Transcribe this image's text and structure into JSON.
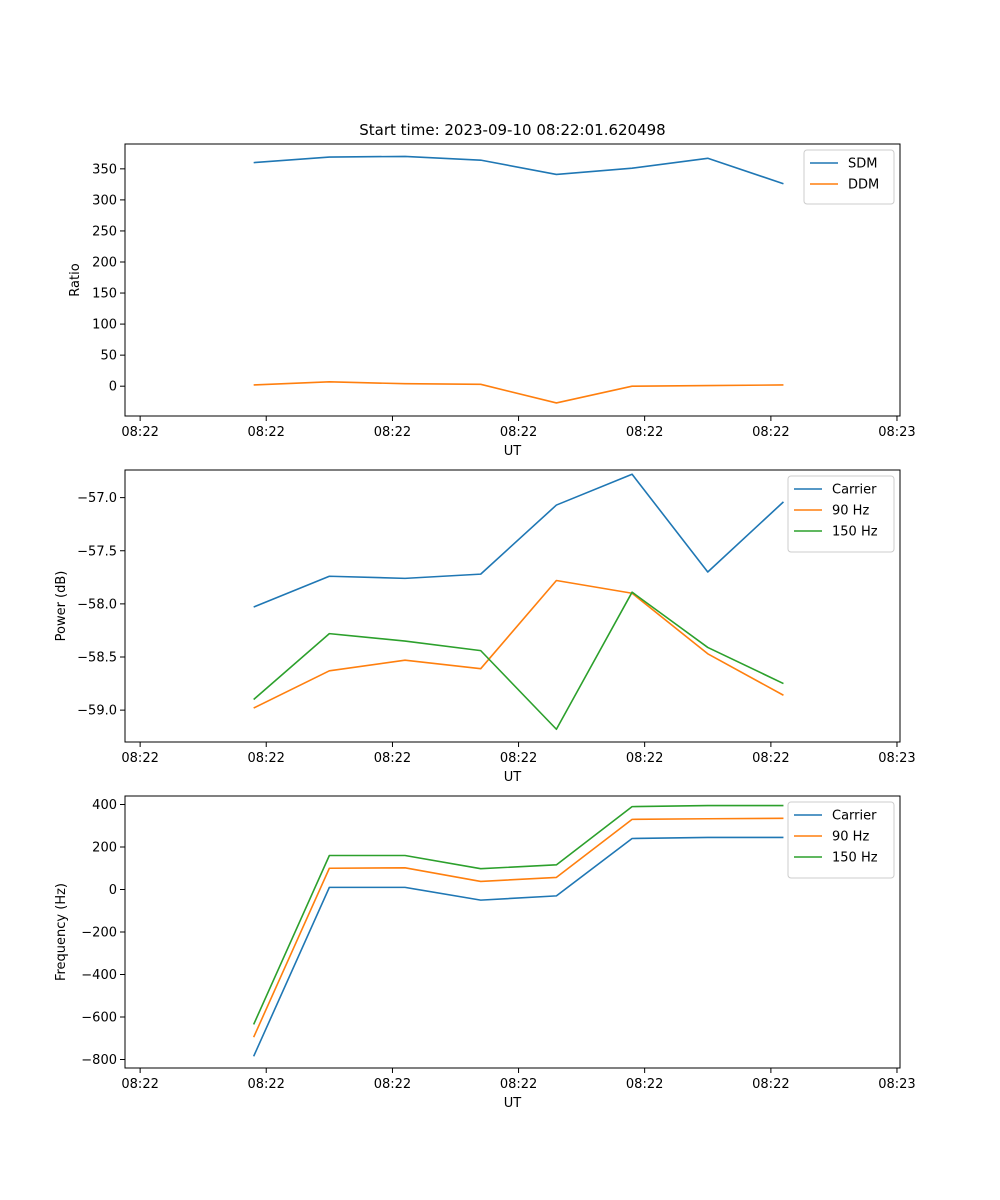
{
  "figure_title": "Start time: 2023-09-10 08:22:01.620498",
  "chart_data": [
    {
      "type": "line",
      "title": "Start time: 2023-09-10 08:22:01.620498",
      "xlabel": "UT",
      "ylabel": "Ratio",
      "x": [
        0.75,
        1.25,
        1.75,
        2.25,
        2.75,
        3.25,
        3.75,
        4.25
      ],
      "x_ticks": [
        0,
        0.833,
        1.667,
        2.5,
        3.333,
        4.167,
        5.0
      ],
      "x_tick_labels": [
        "08:22",
        "08:22",
        "08:22",
        "08:22",
        "08:22",
        "08:22",
        "08:23"
      ],
      "xlim": [
        -0.1,
        5.02
      ],
      "ylim": [
        -48,
        390
      ],
      "y_ticks": [
        0,
        50,
        100,
        150,
        200,
        250,
        300,
        350
      ],
      "y_tick_labels": [
        "0",
        "50",
        "100",
        "150",
        "200",
        "250",
        "300",
        "350"
      ],
      "legend_position": "top-right",
      "series": [
        {
          "name": "SDM",
          "color": "#1f77b4",
          "values": [
            360,
            369,
            370,
            364,
            341,
            351,
            367,
            326
          ]
        },
        {
          "name": "DDM",
          "color": "#ff7f0e",
          "values": [
            2,
            7,
            4,
            3,
            -27,
            0,
            1,
            2
          ]
        }
      ]
    },
    {
      "type": "line",
      "title": "",
      "xlabel": "UT",
      "ylabel": "Power (dB)",
      "x": [
        0.75,
        1.25,
        1.75,
        2.25,
        2.75,
        3.25,
        3.75,
        4.25
      ],
      "x_ticks": [
        0,
        0.833,
        1.667,
        2.5,
        3.333,
        4.167,
        5.0
      ],
      "x_tick_labels": [
        "08:22",
        "08:22",
        "08:22",
        "08:22",
        "08:22",
        "08:22",
        "08:23"
      ],
      "xlim": [
        -0.1,
        5.02
      ],
      "ylim": [
        -59.3,
        -56.74
      ],
      "y_ticks": [
        -59.0,
        -58.5,
        -58.0,
        -57.5,
        -57.0
      ],
      "y_tick_labels": [
        "−59.0",
        "−58.5",
        "−58.0",
        "−57.5",
        "−57.0"
      ],
      "legend_position": "top-right",
      "series": [
        {
          "name": "Carrier",
          "color": "#1f77b4",
          "values": [
            -58.03,
            -57.74,
            -57.76,
            -57.72,
            -57.07,
            -56.78,
            -57.7,
            -57.04
          ]
        },
        {
          "name": "90 Hz",
          "color": "#ff7f0e",
          "values": [
            -58.98,
            -58.63,
            -58.53,
            -58.61,
            -57.78,
            -57.9,
            -58.47,
            -58.86
          ]
        },
        {
          "name": "150 Hz",
          "color": "#2ca02c",
          "values": [
            -58.9,
            -58.28,
            -58.35,
            -58.44,
            -59.18,
            -57.89,
            -58.41,
            -58.75
          ]
        }
      ]
    },
    {
      "type": "line",
      "title": "",
      "xlabel": "UT",
      "ylabel": "Frequency (Hz)",
      "x": [
        0.75,
        1.25,
        1.75,
        2.25,
        2.75,
        3.25,
        3.75,
        4.25
      ],
      "x_ticks": [
        0,
        0.833,
        1.667,
        2.5,
        3.333,
        4.167,
        5.0
      ],
      "x_tick_labels": [
        "08:22",
        "08:22",
        "08:22",
        "08:22",
        "08:22",
        "08:22",
        "08:23"
      ],
      "xlim": [
        -0.1,
        5.02
      ],
      "ylim": [
        -840,
        440
      ],
      "y_ticks": [
        -800,
        -600,
        -400,
        -200,
        0,
        200,
        400
      ],
      "y_tick_labels": [
        "−800",
        "−600",
        "−400",
        "−200",
        "0",
        "200",
        "400"
      ],
      "legend_position": "top-right",
      "series": [
        {
          "name": "Carrier",
          "color": "#1f77b4",
          "values": [
            -785,
            10,
            10,
            -50,
            -30,
            240,
            245,
            245
          ]
        },
        {
          "name": "90 Hz",
          "color": "#ff7f0e",
          "values": [
            -695,
            100,
            102,
            38,
            57,
            330,
            333,
            335
          ]
        },
        {
          "name": "150 Hz",
          "color": "#2ca02c",
          "values": [
            -635,
            160,
            160,
            98,
            116,
            390,
            395,
            395
          ]
        }
      ]
    }
  ]
}
